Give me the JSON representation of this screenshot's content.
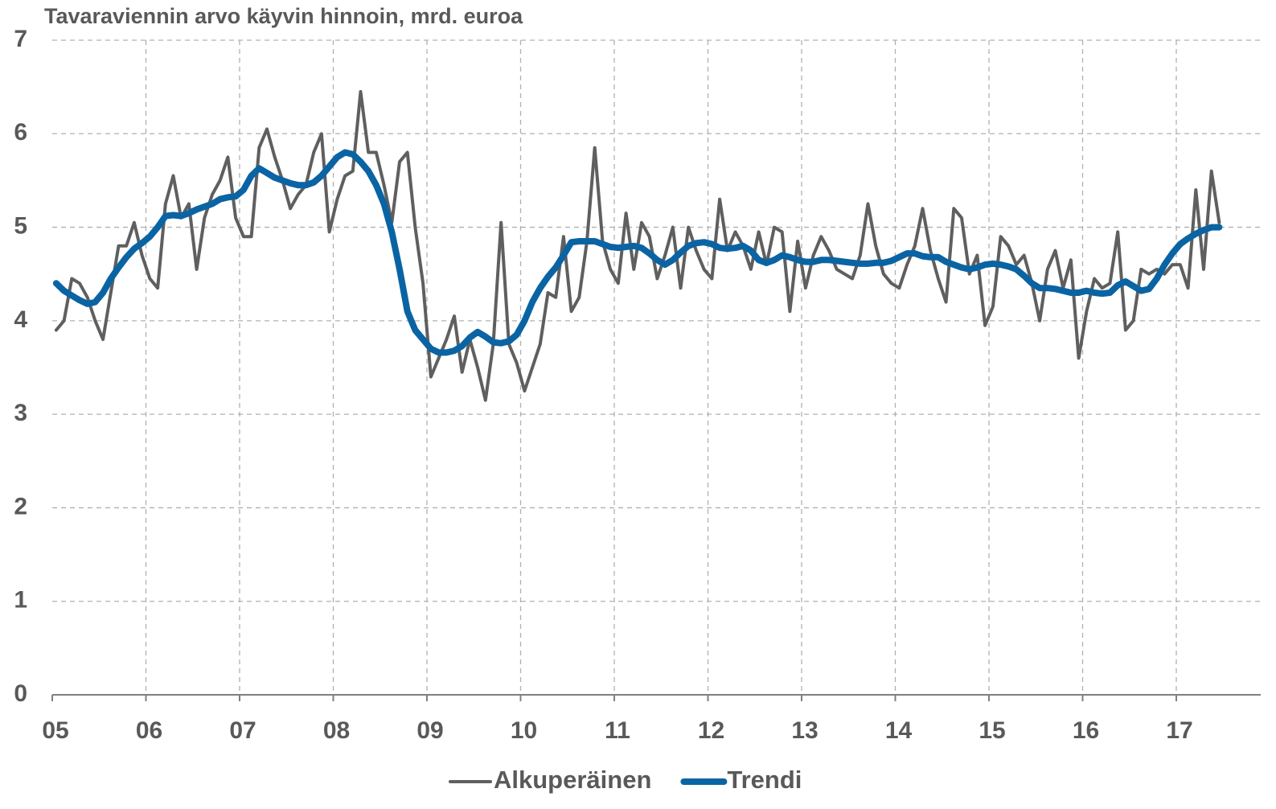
{
  "chart_data": {
    "type": "line",
    "title": "Tavaraviennin arvo käyvin hinnoin, mrd. euroa",
    "categories": [
      "05",
      null,
      null,
      null,
      null,
      null,
      null,
      null,
      null,
      null,
      null,
      null,
      "06",
      null,
      null,
      null,
      null,
      null,
      null,
      null,
      null,
      null,
      null,
      null,
      "07",
      null,
      null,
      null,
      null,
      null,
      null,
      null,
      null,
      null,
      null,
      null,
      "08",
      null,
      null,
      null,
      null,
      null,
      null,
      null,
      null,
      null,
      null,
      null,
      "09",
      null,
      null,
      null,
      null,
      null,
      null,
      null,
      null,
      null,
      null,
      null,
      "10",
      null,
      null,
      null,
      null,
      null,
      null,
      null,
      null,
      null,
      null,
      null,
      "11",
      null,
      null,
      null,
      null,
      null,
      null,
      null,
      null,
      null,
      null,
      null,
      "12",
      null,
      null,
      null,
      null,
      null,
      null,
      null,
      null,
      null,
      null,
      null,
      "13",
      null,
      null,
      null,
      null,
      null,
      null,
      null,
      null,
      null,
      null,
      null,
      "14",
      null,
      null,
      null,
      null,
      null,
      null,
      null,
      null,
      null,
      null,
      null,
      "15",
      null,
      null,
      null,
      null,
      null,
      null,
      null,
      null,
      null,
      null,
      null,
      "16",
      null,
      null,
      null,
      null,
      null,
      null,
      null,
      null,
      null,
      null,
      null,
      "17",
      null,
      null,
      null,
      null,
      null
    ],
    "series": [
      {
        "name": "Alkuperäinen",
        "color": "#5f5f5f",
        "width": 4,
        "values": [
          3.9,
          4.0,
          4.45,
          4.4,
          4.25,
          4.0,
          3.8,
          4.3,
          4.8,
          4.8,
          5.05,
          4.7,
          4.45,
          4.35,
          5.25,
          5.55,
          5.1,
          5.25,
          4.55,
          5.1,
          5.35,
          5.5,
          5.75,
          5.1,
          4.9,
          4.9,
          5.85,
          6.05,
          5.75,
          5.5,
          5.2,
          5.35,
          5.45,
          5.8,
          6.0,
          4.95,
          5.3,
          5.55,
          5.6,
          6.45,
          5.8,
          5.8,
          5.45,
          5.05,
          5.7,
          5.8,
          5.0,
          4.4,
          3.4,
          3.6,
          3.8,
          4.05,
          3.45,
          3.8,
          3.5,
          3.15,
          3.75,
          5.05,
          3.75,
          3.55,
          3.25,
          3.5,
          3.75,
          4.3,
          4.25,
          4.9,
          4.1,
          4.25,
          4.85,
          5.85,
          4.85,
          4.55,
          4.4,
          5.15,
          4.55,
          5.05,
          4.9,
          4.45,
          4.7,
          5.0,
          4.35,
          5.0,
          4.75,
          4.55,
          4.45,
          5.3,
          4.75,
          4.95,
          4.8,
          4.55,
          4.95,
          4.6,
          5.0,
          4.95,
          4.1,
          4.85,
          4.35,
          4.7,
          4.9,
          4.75,
          4.55,
          4.5,
          4.45,
          4.7,
          5.25,
          4.8,
          4.5,
          4.4,
          4.35,
          4.6,
          4.8,
          5.2,
          4.75,
          4.45,
          4.2,
          5.2,
          5.1,
          4.5,
          4.7,
          3.95,
          4.15,
          4.9,
          4.8,
          4.6,
          4.7,
          4.4,
          4.0,
          4.55,
          4.75,
          4.35,
          4.65,
          3.6,
          4.1,
          4.45,
          4.35,
          4.4,
          4.95,
          3.9,
          4.0,
          4.55,
          4.5,
          4.55,
          4.5,
          4.6,
          4.6,
          4.35,
          5.4,
          4.55,
          5.6,
          5.05
        ]
      },
      {
        "name": "Trendi",
        "color": "#0a64a4",
        "width": 8,
        "values": [
          4.4,
          4.32,
          4.27,
          4.22,
          4.18,
          4.2,
          4.3,
          4.45,
          4.57,
          4.68,
          4.77,
          4.83,
          4.9,
          5.0,
          5.12,
          5.13,
          5.12,
          5.15,
          5.19,
          5.22,
          5.25,
          5.3,
          5.32,
          5.33,
          5.4,
          5.55,
          5.63,
          5.58,
          5.53,
          5.5,
          5.47,
          5.45,
          5.45,
          5.48,
          5.55,
          5.65,
          5.75,
          5.8,
          5.78,
          5.7,
          5.6,
          5.45,
          5.25,
          4.95,
          4.55,
          4.1,
          3.9,
          3.8,
          3.7,
          3.66,
          3.66,
          3.68,
          3.73,
          3.82,
          3.88,
          3.83,
          3.77,
          3.76,
          3.78,
          3.85,
          4.0,
          4.2,
          4.35,
          4.47,
          4.57,
          4.7,
          4.84,
          4.85,
          4.85,
          4.85,
          4.82,
          4.79,
          4.78,
          4.79,
          4.8,
          4.78,
          4.72,
          4.65,
          4.6,
          4.65,
          4.73,
          4.8,
          4.83,
          4.84,
          4.82,
          4.78,
          4.77,
          4.78,
          4.8,
          4.75,
          4.65,
          4.62,
          4.65,
          4.7,
          4.68,
          4.65,
          4.63,
          4.63,
          4.65,
          4.65,
          4.64,
          4.63,
          4.62,
          4.61,
          4.61,
          4.62,
          4.62,
          4.64,
          4.68,
          4.72,
          4.72,
          4.69,
          4.68,
          4.68,
          4.63,
          4.6,
          4.57,
          4.55,
          4.57,
          4.6,
          4.61,
          4.6,
          4.58,
          4.55,
          4.48,
          4.4,
          4.35,
          4.35,
          4.34,
          4.32,
          4.3,
          4.3,
          4.32,
          4.3,
          4.29,
          4.3,
          4.38,
          4.42,
          4.37,
          4.32,
          4.34,
          4.45,
          4.6,
          4.72,
          4.82,
          4.88,
          4.93,
          4.97,
          5.0,
          5.0
        ]
      }
    ],
    "ylim": [
      0,
      7
    ],
    "yticks": [
      0,
      1,
      2,
      3,
      4,
      5,
      6,
      7
    ],
    "grid": true,
    "legend": "bottom"
  }
}
